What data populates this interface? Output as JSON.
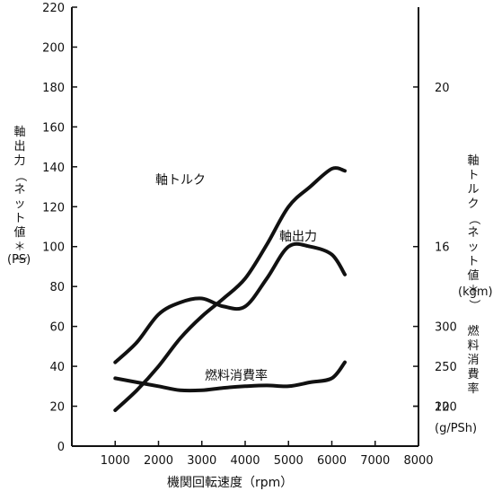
{
  "chart_data": {
    "type": "line",
    "xlabel": "機関回転速度（rpm）",
    "x_ticks": [
      1000,
      2000,
      3000,
      4000,
      5000,
      6000,
      7000,
      8000
    ],
    "xlim": [
      0,
      8000
    ],
    "left_axis": {
      "label": "軸出力（ネット値＊）",
      "unit": "(PS)",
      "ylim": [
        0,
        220
      ],
      "ticks": [
        0,
        20,
        40,
        60,
        80,
        100,
        120,
        140,
        160,
        180,
        200,
        220
      ]
    },
    "right_torque_axis": {
      "label": "軸トルク（ネット値＊）",
      "unit": "(kgm)",
      "ticks": [
        12,
        16,
        20
      ]
    },
    "right_fuel_axis": {
      "label": "燃料消費率",
      "unit": "(g/PSh)",
      "ticks": [
        200,
        250,
        300
      ]
    },
    "series": [
      {
        "name": "軸出力",
        "axis": "left",
        "x": [
          1000,
          1500,
          2000,
          2500,
          3000,
          3500,
          4000,
          4500,
          5000,
          5500,
          6000,
          6300
        ],
        "y": [
          18,
          28,
          40,
          54,
          65,
          74,
          84,
          101,
          120,
          130,
          139,
          138
        ]
      },
      {
        "name": "軸トルク",
        "axis": "torque",
        "x": [
          1000,
          1500,
          2000,
          2500,
          3000,
          3500,
          4000,
          4500,
          5000,
          5500,
          6000,
          6300
        ],
        "y": [
          13.1,
          13.6,
          14.3,
          14.6,
          14.7,
          14.5,
          14.5,
          15.2,
          16.0,
          16.0,
          15.8,
          15.3
        ]
      },
      {
        "name": "燃料消費率",
        "axis": "fuel",
        "x": [
          1000,
          1500,
          2000,
          2500,
          3000,
          3500,
          4000,
          4500,
          5000,
          5500,
          6000,
          6300
        ],
        "y": [
          235,
          230,
          225,
          220,
          220,
          223,
          225,
          226,
          225,
          230,
          235,
          255
        ]
      }
    ]
  }
}
